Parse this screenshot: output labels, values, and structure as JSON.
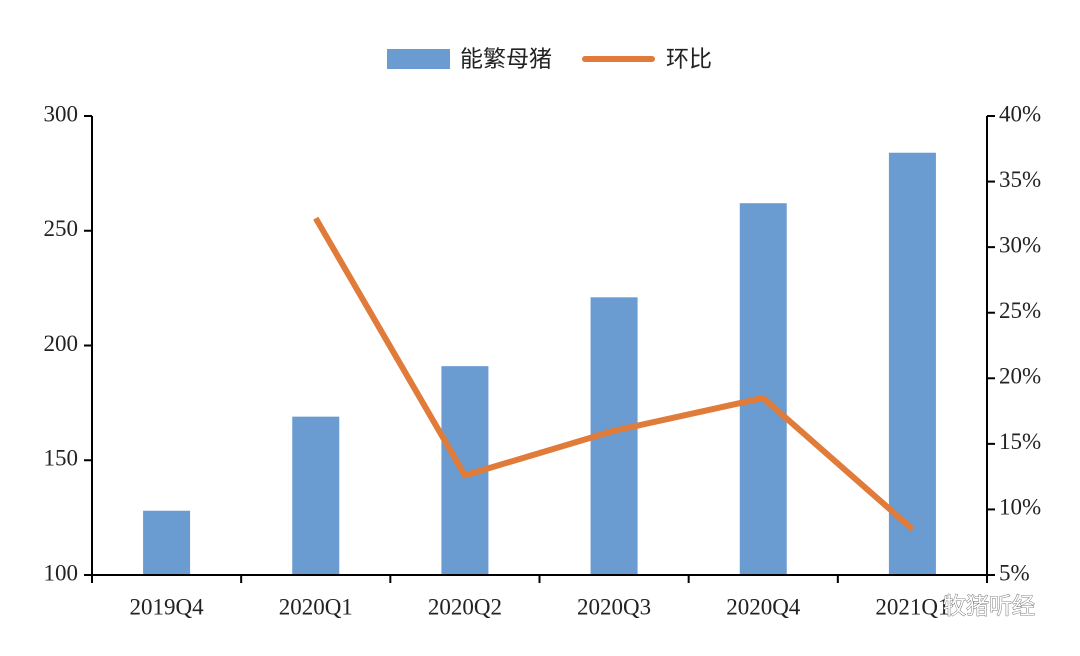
{
  "chart_data": {
    "type": "bar_line",
    "categories": [
      "2019Q4",
      "2020Q1",
      "2020Q2",
      "2020Q3",
      "2020Q4",
      "2021Q1"
    ],
    "series": [
      {
        "name": "能繁母猪",
        "color": "#6a9bd1",
        "type": "bar",
        "values": [
          128,
          169,
          191,
          221,
          262,
          284
        ]
      },
      {
        "name": "环比",
        "color": "#e07b39",
        "type": "line",
        "axis": "y2",
        "values": [
          null,
          32.2,
          12.6,
          16,
          18.5,
          8.5
        ]
      }
    ],
    "ylim": [
      100,
      300
    ],
    "yticks": [
      100,
      150,
      200,
      250,
      300
    ],
    "y2lim": [
      5,
      40
    ],
    "y2ticks": [
      {
        "value": 5,
        "label": "5%"
      },
      {
        "value": 10,
        "label": "10%"
      },
      {
        "value": 15,
        "label": "15%"
      },
      {
        "value": 20,
        "label": "20%"
      },
      {
        "value": 25,
        "label": "25%"
      },
      {
        "value": 30,
        "label": "30%"
      },
      {
        "value": 35,
        "label": "35%"
      },
      {
        "value": 40,
        "label": "40%"
      }
    ],
    "legend": "top",
    "watermark": "牧猪听经"
  }
}
